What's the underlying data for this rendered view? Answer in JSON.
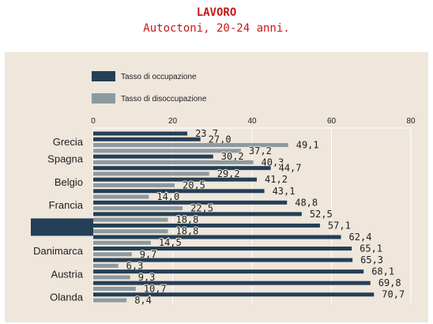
{
  "header": {
    "title": "LAVORO",
    "subtitle": "Autoctoni, 20-24 anni."
  },
  "colors": {
    "panel": "#efe6dc",
    "occupazione": "#243f56",
    "disoccupazione": "#8c9aa0",
    "highlight": "#243f56",
    "grid": "#ffffff",
    "text": "#222222"
  },
  "chart_data": {
    "type": "bar",
    "orientation": "horizontal",
    "xlim": [
      0,
      80
    ],
    "x_ticks": [
      0,
      20,
      40,
      60,
      80
    ],
    "x_axis_position": "top",
    "grid": true,
    "legend_position": "top-left",
    "categories": [
      "Grecia",
      "Spagna",
      "Belgio",
      "Francia",
      "",
      "Danimarca",
      "Austria",
      "Olanda"
    ],
    "highlighted_category_index": 4,
    "series": [
      {
        "name": "Tasso di occupazione",
        "values": [
          27.0,
          30.2,
          41.2,
          48.8,
          57.1,
          65.1,
          68.1,
          70.7
        ]
      },
      {
        "name": "Tasso di disoccupazione",
        "values": [
          49.1,
          40.3,
          20.5,
          22.5,
          18.8,
          9.7,
          9.3,
          8.4
        ]
      }
    ],
    "additional_bars": [
      {
        "group_index": 0,
        "position": "above",
        "series": "Tasso di occupazione",
        "value": 23.7
      },
      {
        "group_index": 1,
        "position": "above",
        "series": "Tasso di disoccupazione",
        "value": 37.2
      },
      {
        "group_index": 1,
        "position": "below",
        "series": "Tasso di occupazione",
        "value": 44.7
      },
      {
        "group_index": 2,
        "position": "above",
        "series": "Tasso di disoccupazione",
        "value": 29.2
      },
      {
        "group_index": 2,
        "position": "below",
        "series": "Tasso di occupazione",
        "value": 43.1
      },
      {
        "group_index": 3,
        "position": "above",
        "series": "Tasso di disoccupazione",
        "value": 14.0
      },
      {
        "group_index": 3,
        "position": "below",
        "series": "Tasso di occupazione",
        "value": 52.5
      },
      {
        "group_index": 4,
        "position": "above",
        "series": "Tasso di disoccupazione",
        "value": 18.8
      },
      {
        "group_index": 4,
        "position": "below",
        "series": "Tasso di occupazione",
        "value": 62.4
      },
      {
        "group_index": 5,
        "position": "above",
        "series": "Tasso di disoccupazione",
        "value": 14.5
      },
      {
        "group_index": 5,
        "position": "below",
        "series": "Tasso di occupazione",
        "value": 65.3
      },
      {
        "group_index": 6,
        "position": "above",
        "series": "Tasso di disoccupazione",
        "value": 6.3
      },
      {
        "group_index": 6,
        "position": "below",
        "series": "Tasso di occupazione",
        "value": 69.8
      },
      {
        "group_index": 7,
        "position": "above",
        "series": "Tasso di disoccupazione",
        "value": 10.7
      }
    ]
  }
}
